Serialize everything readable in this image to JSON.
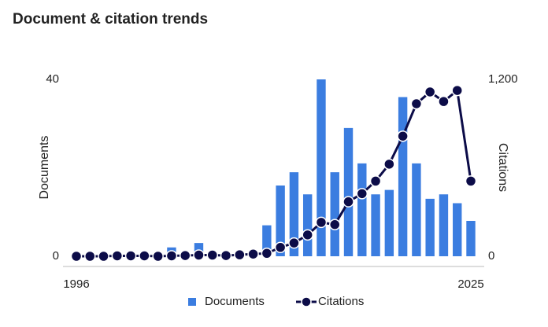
{
  "chart_data": {
    "type": "bar-line",
    "title": "Document & citation trends",
    "x": [
      1996,
      1997,
      1998,
      1999,
      2000,
      2001,
      2002,
      2003,
      2004,
      2005,
      2006,
      2007,
      2008,
      2009,
      2010,
      2011,
      2012,
      2013,
      2014,
      2015,
      2016,
      2017,
      2018,
      2019,
      2020,
      2021,
      2022,
      2023,
      2024,
      2025
    ],
    "xticks": [
      1996,
      2025
    ],
    "xlim": [
      1996,
      2025
    ],
    "series": [
      {
        "name": "Documents",
        "color": "#3b7de0",
        "axis": "y",
        "values": [
          0,
          0,
          0,
          0,
          0,
          0,
          0,
          2,
          0,
          3,
          0,
          0,
          0,
          0,
          7,
          16,
          19,
          14,
          40,
          19,
          29,
          21,
          14,
          15,
          36,
          21,
          13,
          14,
          12,
          8
        ]
      },
      {
        "name": "Citations",
        "color": "#0c0c48",
        "axis": "y2",
        "values": [
          0,
          0,
          0,
          3,
          3,
          3,
          0,
          3,
          5,
          8,
          8,
          5,
          10,
          15,
          20,
          60,
          90,
          145,
          230,
          215,
          370,
          425,
          510,
          625,
          815,
          1035,
          1115,
          1050,
          1125,
          510
        ]
      }
    ],
    "ylabel": "Documents",
    "y2label": "Citations",
    "ylim": [
      0,
      40
    ],
    "yticks": [
      0,
      40
    ],
    "y2lim": [
      0,
      1200
    ],
    "y2ticks": [
      0,
      {
        "value": 1200,
        "label": "1,200"
      }
    ],
    "legend": "bottom"
  }
}
